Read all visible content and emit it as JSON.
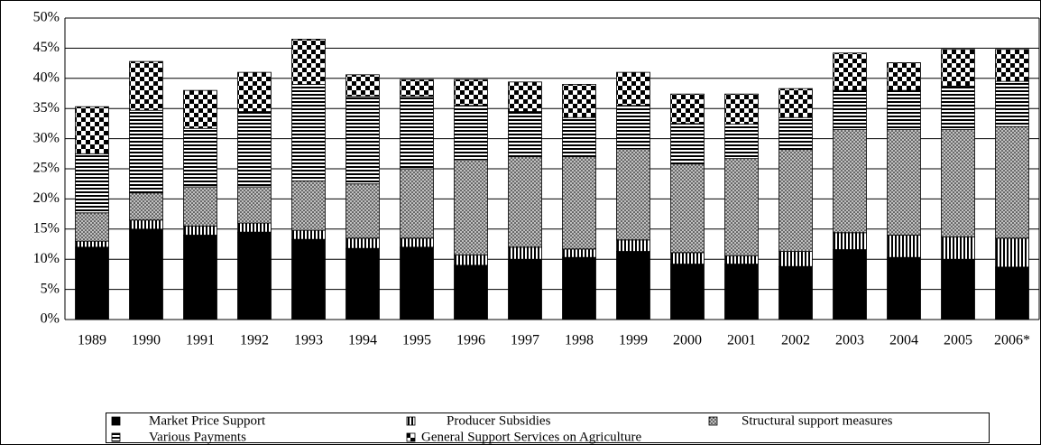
{
  "chart_data": {
    "type": "stacked_bar",
    "categories": [
      "1989",
      "1990",
      "1991",
      "1992",
      "1993",
      "1994",
      "1995",
      "1996",
      "1997",
      "1998",
      "1999",
      "2000",
      "2001",
      "2002",
      "2003",
      "2004",
      "2005",
      "2006*"
    ],
    "series": [
      {
        "name": "Market Price Support",
        "color": "#000000",
        "values": [
          12,
          15,
          14,
          14.5,
          13.3,
          11.8,
          12,
          9,
          10,
          10.3,
          11.3,
          9.2,
          9.2,
          8.8,
          11.6,
          10.3,
          10,
          8.7
        ]
      },
      {
        "name": "Producer Subsidies",
        "color": "#ffffff",
        "values": [
          1,
          1.5,
          1.5,
          1.5,
          1.5,
          1.7,
          1.5,
          1.7,
          2,
          1.4,
          1.9,
          1.9,
          1.4,
          2.5,
          2.8,
          3.7,
          3.7,
          4.8
        ]
      },
      {
        "name": "Structural support measures",
        "color": "#c0c0c0",
        "values": [
          4.7,
          4.5,
          6.5,
          6,
          8.2,
          9,
          11.5,
          15.8,
          15,
          15.3,
          15.1,
          14.7,
          16.1,
          16.9,
          17.1,
          17.5,
          17.8,
          18.5
        ]
      },
      {
        "name": "Various Payments",
        "color": "#ffffff",
        "values": [
          9.8,
          13.7,
          9.7,
          12.5,
          16,
          14.5,
          12,
          9,
          7.5,
          6.5,
          7.2,
          6.7,
          5.7,
          5.3,
          6.5,
          6.5,
          7.2,
          7.5
        ]
      },
      {
        "name": "General Support Services on Agriculture",
        "color": "#ffffff",
        "values": [
          7.8,
          8.1,
          6.3,
          6.5,
          7.5,
          3.6,
          2.8,
          4.3,
          4.9,
          5.5,
          5.5,
          4.9,
          5,
          4.8,
          6.2,
          4.6,
          6.1,
          5.3
        ]
      }
    ],
    "ylim": [
      0,
      50
    ],
    "yticks": [
      {
        "value": 0,
        "label": "0%"
      },
      {
        "value": 5,
        "label": "5%"
      },
      {
        "value": 10,
        "label": "10%"
      },
      {
        "value": 15,
        "label": "15%"
      },
      {
        "value": 20,
        "label": "20%"
      },
      {
        "value": 25,
        "label": "25%"
      },
      {
        "value": 30,
        "label": "30%"
      },
      {
        "value": 35,
        "label": "35%"
      },
      {
        "value": 40,
        "label": "40%"
      },
      {
        "value": 45,
        "label": "45%"
      },
      {
        "value": 50,
        "label": "50%"
      }
    ],
    "grid": true
  }
}
